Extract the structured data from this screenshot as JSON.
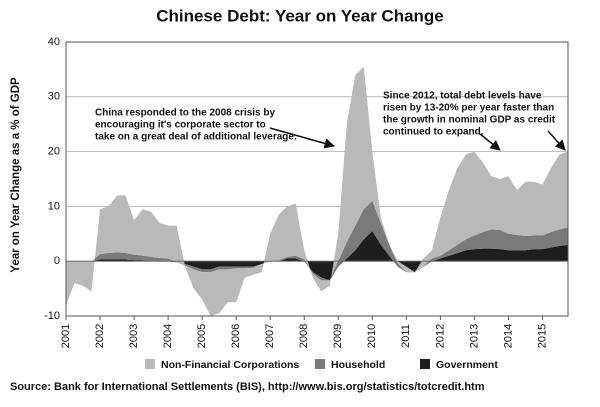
{
  "chart_data": {
    "type": "area",
    "title": "Chinese Debt: Year on Year Change",
    "y_label": "Year on Year Change as a % of GDP",
    "source": "Source: Bank for International Settlements (BIS), http://www.bis.org/statistics/totcredit.htm",
    "annotations": [
      [
        "China responded to the 2008 crisis by",
        "encouraging it's corporate sector to",
        "take on a great deal of additional leverage."
      ],
      [
        "Since 2012, total debt levels have",
        "risen by 13-20% per year faster than",
        "the growth in nominal GDP as credit",
        "continued to expand."
      ]
    ],
    "stacked": true,
    "grid": true,
    "legend": "bottom",
    "xlim": [
      2001,
      2015.75
    ],
    "xticks": [
      2001,
      2002,
      2003,
      2004,
      2005,
      2006,
      2007,
      2008,
      2009,
      2010,
      2011,
      2012,
      2013,
      2014,
      2015
    ],
    "ylim": [
      -10,
      40
    ],
    "yticks": [
      -10,
      0,
      10,
      20,
      30,
      40
    ],
    "x": [
      2001,
      2001.25,
      2001.5,
      2001.75,
      2002,
      2002.25,
      2002.5,
      2002.75,
      2003,
      2003.25,
      2003.5,
      2003.75,
      2004,
      2004.25,
      2004.5,
      2004.75,
      2005,
      2005.25,
      2005.5,
      2005.75,
      2006,
      2006.25,
      2006.5,
      2006.75,
      2007,
      2007.25,
      2007.5,
      2007.75,
      2008,
      2008.25,
      2008.5,
      2008.75,
      2009,
      2009.25,
      2009.5,
      2009.75,
      2010,
      2010.25,
      2010.5,
      2010.75,
      2011,
      2011.25,
      2011.5,
      2011.75,
      2012,
      2012.25,
      2012.5,
      2012.75,
      2013,
      2013.25,
      2013.5,
      2013.75,
      2014,
      2014.25,
      2014.5,
      2014.75,
      2015,
      2015.25,
      2015.5,
      2015.75
    ],
    "series": [
      {
        "name": "Government",
        "color": "#1e1e1e",
        "values": [
          0,
          0,
          0,
          0,
          0.3,
          0.3,
          0.3,
          0.3,
          0.2,
          0.2,
          0,
          0,
          0,
          -0.2,
          -0.5,
          -1,
          -1.5,
          -1.5,
          -1,
          -1,
          -1,
          -1,
          -1,
          -0.5,
          0,
          0,
          0.5,
          0.5,
          0,
          -2,
          -3,
          -3.5,
          -1,
          0.5,
          2,
          4,
          5.5,
          3,
          1,
          -1,
          -2,
          -2,
          -1,
          0,
          0.5,
          1,
          1.5,
          2,
          2.2,
          2.3,
          2.3,
          2.2,
          2,
          2,
          2,
          2.2,
          2.2,
          2.5,
          2.8,
          3
        ]
      },
      {
        "name": "Household",
        "color": "#7a7a7a",
        "values": [
          0,
          0,
          0,
          0,
          1,
          1.2,
          1.3,
          1.2,
          1,
          0.8,
          0.8,
          0.6,
          0.5,
          0,
          -0.3,
          -0.5,
          -0.5,
          -0.5,
          -0.5,
          -0.5,
          -0.3,
          -0.3,
          -0.2,
          0,
          0,
          0.2,
          0.3,
          0.5,
          0.3,
          -0.3,
          -0.5,
          0,
          1,
          3,
          4.5,
          5.5,
          5.5,
          4,
          2,
          0.5,
          0,
          0,
          0,
          0.5,
          0.5,
          1,
          1.5,
          2,
          2.5,
          3,
          3.5,
          3.5,
          3,
          2.8,
          2.6,
          2.5,
          2.5,
          2.8,
          3,
          3.2
        ]
      },
      {
        "name": "Non-Financial Corporations",
        "color": "#b9b9b9",
        "values": [
          -8,
          -4,
          -4.5,
          -5.5,
          8.2,
          8.5,
          10.4,
          10.5,
          6.3,
          8.5,
          8.2,
          6.4,
          6,
          6.7,
          -0.2,
          -3.5,
          -5,
          -8,
          -8,
          -6,
          -6.2,
          -1.7,
          -1.3,
          -1.5,
          5,
          8.3,
          9.2,
          9.5,
          1.7,
          -0.7,
          -2,
          -1,
          5,
          21.5,
          27.5,
          26,
          9,
          1,
          0,
          0.5,
          1,
          0,
          1.5,
          1.5,
          7,
          11,
          14,
          15.5,
          15.3,
          12.7,
          9.7,
          9.3,
          10.5,
          8.2,
          9.9,
          9.8,
          9.3,
          11.7,
          13.7,
          13.8
        ]
      }
    ]
  }
}
